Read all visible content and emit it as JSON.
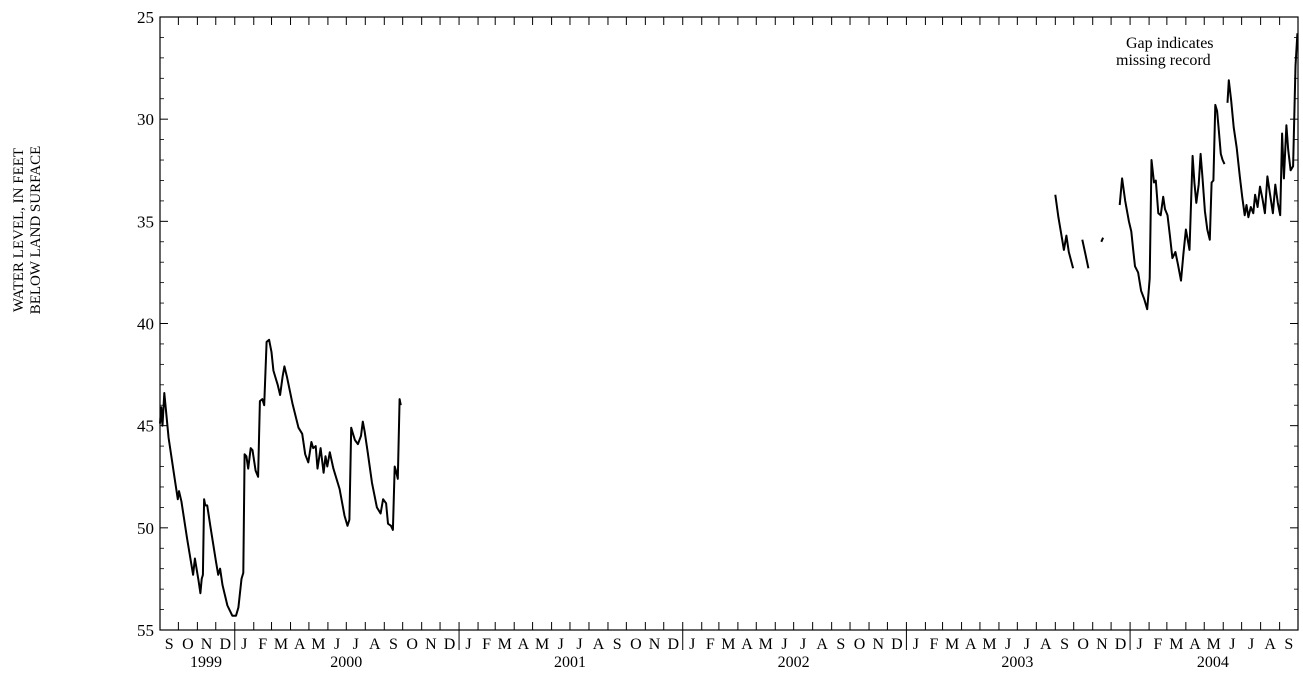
{
  "chart_data": {
    "type": "line",
    "title": "",
    "ylabel_lines": [
      "WATER LEVEL, IN FEET",
      "BELOW LAND SURFACE"
    ],
    "xlabel": "",
    "y_inverted": true,
    "ylim": [
      25,
      55
    ],
    "yticks": [
      25,
      30,
      35,
      40,
      45,
      50,
      55
    ],
    "xlim": [
      "1999-09-01",
      "2004-10-01"
    ],
    "month_letters": [
      "J",
      "F",
      "M",
      "A",
      "M",
      "J",
      "J",
      "A",
      "S",
      "O",
      "N",
      "D"
    ],
    "year_labels": [
      {
        "label": "1999",
        "x": "1999-11-15"
      },
      {
        "label": "2000",
        "x": "2000-07-01"
      },
      {
        "label": "2001",
        "x": "2001-07-01"
      },
      {
        "label": "2002",
        "x": "2002-07-01"
      },
      {
        "label": "2003",
        "x": "2003-07-01"
      },
      {
        "label": "2004",
        "x": "2004-05-15"
      }
    ],
    "annotation": [
      "Gap indicates",
      "missing record"
    ],
    "series": [
      {
        "color": "#000000",
        "segments": [
          [
            [
              "1999-09-01",
              44.9
            ],
            [
              "1999-09-03",
              44.1
            ],
            [
              "1999-09-05",
              45.0
            ],
            [
              "1999-09-08",
              43.4
            ],
            [
              "1999-09-15",
              45.6
            ],
            [
              "1999-09-25",
              47.6
            ],
            [
              "1999-09-30",
              48.6
            ],
            [
              "1999-10-02",
              48.2
            ],
            [
              "1999-10-06",
              48.7
            ],
            [
              "1999-10-15",
              50.5
            ],
            [
              "1999-10-25",
              52.3
            ],
            [
              "1999-10-28",
              51.5
            ],
            [
              "1999-11-03",
              52.6
            ],
            [
              "1999-11-06",
              53.2
            ],
            [
              "1999-11-08",
              52.5
            ],
            [
              "1999-11-10",
              52.3
            ],
            [
              "1999-11-12",
              48.6
            ],
            [
              "1999-11-14",
              48.9
            ],
            [
              "1999-11-17",
              48.9
            ],
            [
              "1999-11-22",
              49.9
            ],
            [
              "1999-12-01",
              51.6
            ],
            [
              "1999-12-05",
              52.3
            ],
            [
              "1999-12-08",
              52.0
            ],
            [
              "1999-12-12",
              52.8
            ],
            [
              "1999-12-20",
              53.8
            ],
            [
              "1999-12-28",
              54.3
            ],
            [
              "2000-01-03",
              54.3
            ],
            [
              "2000-01-07",
              53.9
            ],
            [
              "2000-01-12",
              52.5
            ],
            [
              "2000-01-15",
              52.2
            ],
            [
              "2000-01-17",
              46.4
            ],
            [
              "2000-01-20",
              46.5
            ],
            [
              "2000-01-23",
              47.1
            ],
            [
              "2000-01-27",
              46.1
            ],
            [
              "2000-01-30",
              46.2
            ],
            [
              "2000-02-04",
              47.2
            ],
            [
              "2000-02-08",
              47.5
            ],
            [
              "2000-02-11",
              43.8
            ],
            [
              "2000-02-15",
              43.7
            ],
            [
              "2000-02-18",
              44.0
            ],
            [
              "2000-02-22",
              40.9
            ],
            [
              "2000-02-26",
              40.8
            ],
            [
              "2000-03-01",
              41.4
            ],
            [
              "2000-03-04",
              42.3
            ],
            [
              "2000-03-07",
              42.6
            ],
            [
              "2000-03-11",
              43.0
            ],
            [
              "2000-03-15",
              43.5
            ],
            [
              "2000-03-19",
              42.6
            ],
            [
              "2000-03-22",
              42.1
            ],
            [
              "2000-03-26",
              42.6
            ],
            [
              "2000-04-04",
              43.9
            ],
            [
              "2000-04-14",
              45.1
            ],
            [
              "2000-04-20",
              45.4
            ],
            [
              "2000-04-25",
              46.4
            ],
            [
              "2000-04-30",
              46.8
            ],
            [
              "2000-05-05",
              45.8
            ],
            [
              "2000-05-08",
              46.1
            ],
            [
              "2000-05-12",
              46.0
            ],
            [
              "2000-05-15",
              47.1
            ],
            [
              "2000-05-20",
              46.1
            ],
            [
              "2000-05-25",
              47.3
            ],
            [
              "2000-05-28",
              46.5
            ],
            [
              "2000-05-31",
              47.0
            ],
            [
              "2000-06-04",
              46.3
            ],
            [
              "2000-06-10",
              47.1
            ],
            [
              "2000-06-20",
              48.1
            ],
            [
              "2000-06-28",
              49.4
            ],
            [
              "2000-07-03",
              49.9
            ],
            [
              "2000-07-06",
              49.6
            ],
            [
              "2000-07-09",
              45.1
            ],
            [
              "2000-07-12",
              45.4
            ],
            [
              "2000-07-15",
              45.7
            ],
            [
              "2000-07-20",
              45.9
            ],
            [
              "2000-07-25",
              45.5
            ],
            [
              "2000-07-28",
              44.8
            ],
            [
              "2000-07-31",
              45.3
            ],
            [
              "2000-08-05",
              46.3
            ],
            [
              "2000-08-12",
              47.8
            ],
            [
              "2000-08-20",
              49.0
            ],
            [
              "2000-08-26",
              49.3
            ],
            [
              "2000-08-30",
              48.6
            ],
            [
              "2000-09-04",
              48.8
            ],
            [
              "2000-09-07",
              49.8
            ],
            [
              "2000-09-12",
              49.9
            ],
            [
              "2000-09-15",
              50.1
            ],
            [
              "2000-09-18",
              47.0
            ],
            [
              "2000-09-20",
              47.2
            ],
            [
              "2000-09-23",
              47.6
            ],
            [
              "2000-09-26",
              43.7
            ],
            [
              "2000-09-28",
              44.0
            ]
          ],
          [
            [
              "2003-09-01",
              33.7
            ],
            [
              "2003-09-06",
              34.8
            ],
            [
              "2003-09-11",
              35.7
            ],
            [
              "2003-09-15",
              36.4
            ],
            [
              "2003-09-19",
              35.7
            ],
            [
              "2003-09-23",
              36.5
            ],
            [
              "2003-09-30",
              37.3
            ]
          ],
          [
            [
              "2003-10-15",
              35.9
            ],
            [
              "2003-10-20",
              36.6
            ],
            [
              "2003-10-25",
              37.3
            ]
          ],
          [
            [
              "2003-11-15",
              36.0
            ],
            [
              "2003-11-18",
              35.8
            ]
          ],
          [
            [
              "2003-12-15",
              34.2
            ],
            [
              "2003-12-19",
              32.9
            ],
            [
              "2003-12-24",
              34.0
            ],
            [
              "2003-12-30",
              35.0
            ],
            [
              "2004-01-03",
              35.5
            ],
            [
              "2004-01-06",
              36.4
            ],
            [
              "2004-01-09",
              37.2
            ],
            [
              "2004-01-14",
              37.5
            ],
            [
              "2004-01-19",
              38.4
            ],
            [
              "2004-01-24",
              38.8
            ],
            [
              "2004-01-29",
              39.3
            ],
            [
              "2004-02-02",
              37.8
            ],
            [
              "2004-02-05",
              32.0
            ],
            [
              "2004-02-09",
              33.1
            ],
            [
              "2004-02-12",
              33.0
            ],
            [
              "2004-02-16",
              34.6
            ],
            [
              "2004-02-20",
              34.7
            ],
            [
              "2004-02-24",
              33.8
            ],
            [
              "2004-02-27",
              34.4
            ],
            [
              "2004-03-02",
              34.7
            ],
            [
              "2004-03-06",
              35.7
            ],
            [
              "2004-03-10",
              36.8
            ],
            [
              "2004-03-15",
              36.5
            ],
            [
              "2004-03-19",
              37.1
            ],
            [
              "2004-03-24",
              37.9
            ],
            [
              "2004-03-28",
              36.6
            ],
            [
              "2004-04-01",
              35.4
            ],
            [
              "2004-04-04",
              35.9
            ],
            [
              "2004-04-07",
              36.4
            ],
            [
              "2004-04-12",
              31.8
            ],
            [
              "2004-04-15",
              33.1
            ],
            [
              "2004-04-18",
              34.1
            ],
            [
              "2004-04-22",
              33.2
            ],
            [
              "2004-04-25",
              31.7
            ],
            [
              "2004-04-28",
              32.8
            ],
            [
              "2004-05-02",
              34.5
            ],
            [
              "2004-05-06",
              35.4
            ],
            [
              "2004-05-10",
              35.9
            ],
            [
              "2004-05-13",
              33.1
            ],
            [
              "2004-05-16",
              33.0
            ],
            [
              "2004-05-19",
              29.3
            ],
            [
              "2004-05-22",
              29.6
            ],
            [
              "2004-05-25",
              30.6
            ],
            [
              "2004-05-28",
              31.7
            ],
            [
              "2004-05-31",
              32.0
            ],
            [
              "2004-06-03",
              32.2
            ]
          ],
          [
            [
              "2004-06-08",
              29.2
            ],
            [
              "2004-06-10",
              28.1
            ],
            [
              "2004-06-14",
              29.1
            ],
            [
              "2004-06-18",
              30.4
            ],
            [
              "2004-06-23",
              31.4
            ],
            [
              "2004-06-28",
              32.8
            ],
            [
              "2004-07-02",
              33.8
            ],
            [
              "2004-07-06",
              34.7
            ],
            [
              "2004-07-09",
              34.2
            ],
            [
              "2004-07-12",
              34.8
            ],
            [
              "2004-07-16",
              34.3
            ],
            [
              "2004-07-20",
              34.6
            ],
            [
              "2004-07-23",
              33.7
            ],
            [
              "2004-07-27",
              34.3
            ],
            [
              "2004-07-31",
              33.3
            ],
            [
              "2004-08-04",
              33.9
            ],
            [
              "2004-08-08",
              34.6
            ],
            [
              "2004-08-12",
              32.8
            ],
            [
              "2004-08-16",
              33.6
            ],
            [
              "2004-08-21",
              34.6
            ],
            [
              "2004-08-25",
              33.2
            ],
            [
              "2004-08-29",
              34.1
            ],
            [
              "2004-09-02",
              34.7
            ],
            [
              "2004-09-05",
              30.7
            ],
            [
              "2004-09-08",
              32.9
            ],
            [
              "2004-09-12",
              30.3
            ],
            [
              "2004-09-15",
              31.5
            ],
            [
              "2004-09-19",
              32.5
            ],
            [
              "2004-09-23",
              32.3
            ],
            [
              "2004-09-27",
              27.4
            ],
            [
              "2004-09-30",
              25.8
            ]
          ]
        ]
      }
    ]
  }
}
